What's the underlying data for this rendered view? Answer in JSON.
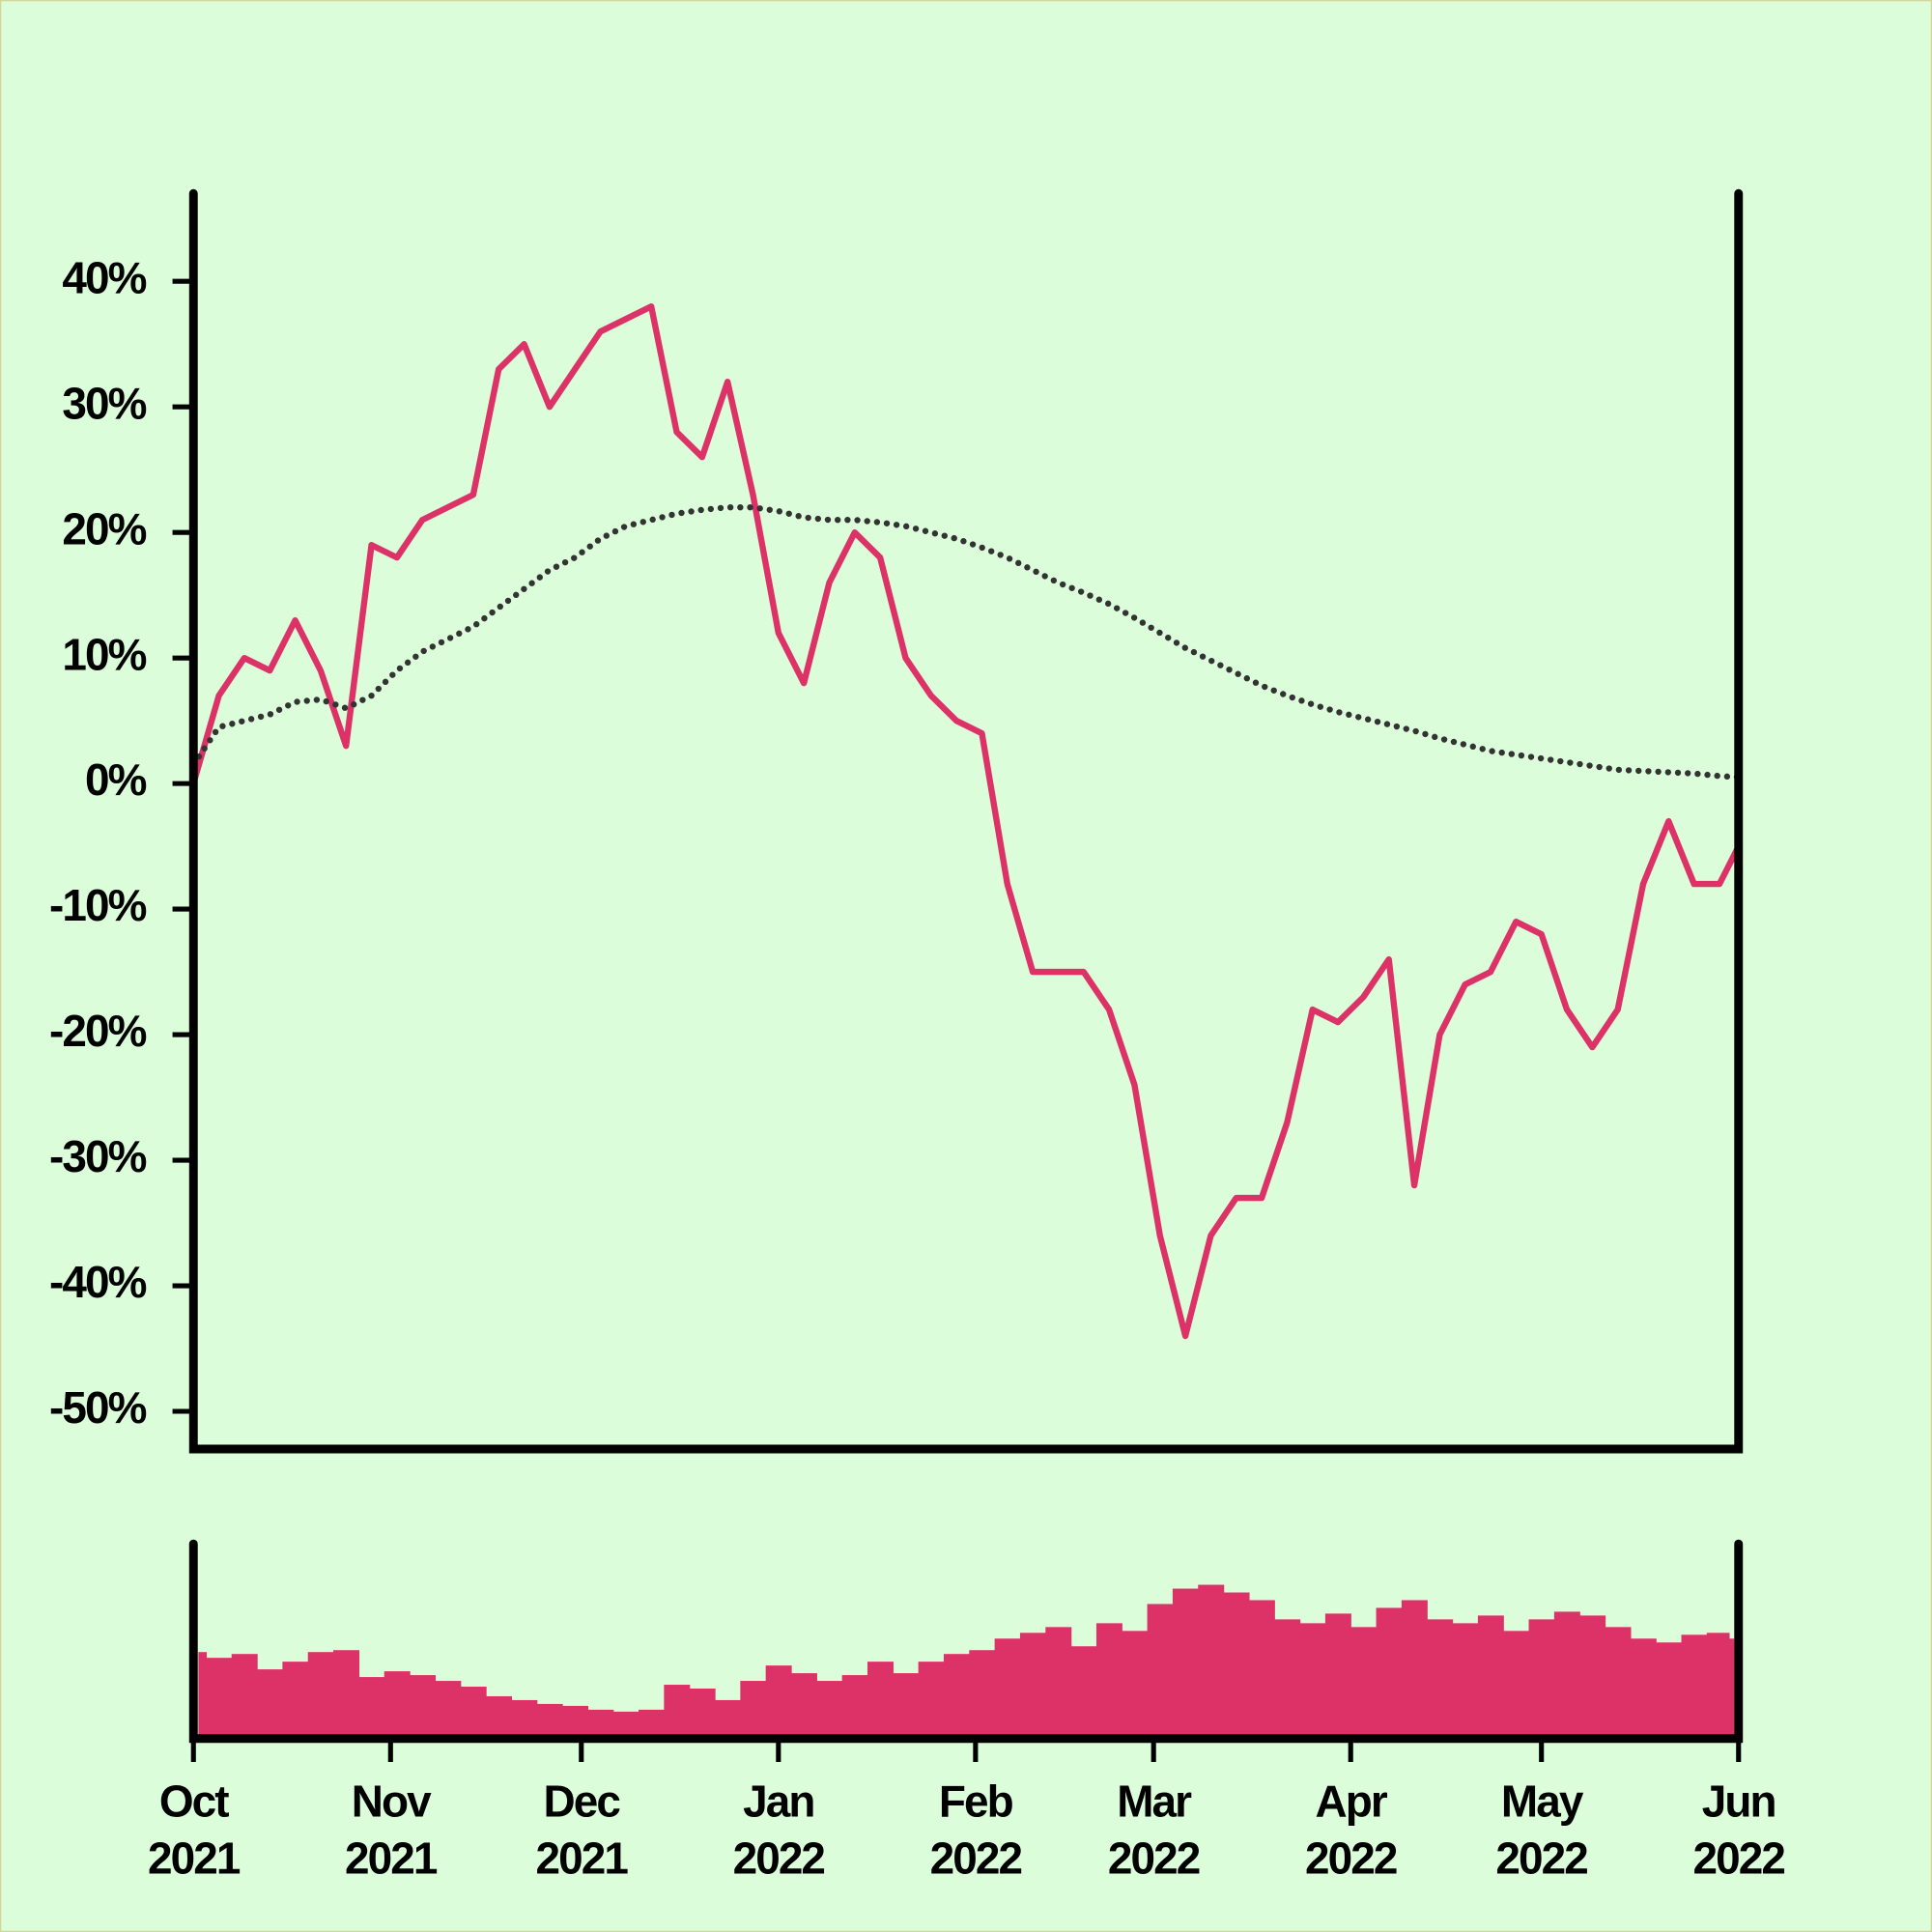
{
  "chart_data": [
    {
      "type": "line",
      "x": [
        0,
        4,
        8,
        12,
        16,
        20,
        24,
        28,
        32,
        36,
        40,
        44,
        48,
        52,
        56,
        60,
        64,
        68,
        72,
        76,
        80,
        84,
        88,
        92,
        96,
        100,
        104,
        108,
        112,
        116,
        120,
        124,
        128,
        132,
        136,
        140,
        144,
        148,
        152,
        156,
        160,
        164,
        168,
        172,
        176,
        180,
        184,
        188,
        192,
        196,
        200,
        204,
        208,
        212,
        216,
        220,
        224,
        228,
        232,
        236,
        240,
        243
      ],
      "xlim": [
        0,
        243
      ],
      "ylim": [
        -53,
        47
      ],
      "yticks": [
        {
          "value": 40,
          "label": "40%"
        },
        {
          "value": 30,
          "label": "30%"
        },
        {
          "value": 20,
          "label": "20%"
        },
        {
          "value": 10,
          "label": "10%"
        },
        {
          "value": 0,
          "label": "0%"
        },
        {
          "value": -10,
          "label": "-10%"
        },
        {
          "value": -20,
          "label": "-20%"
        },
        {
          "value": -30,
          "label": "-30%"
        },
        {
          "value": -40,
          "label": "-40%"
        },
        {
          "value": -50,
          "label": "-50%"
        }
      ],
      "series": [
        {
          "color": "#dc3268",
          "style": "solid",
          "values": [
            0,
            7,
            10,
            9,
            13,
            9,
            3,
            19,
            18,
            21,
            22,
            23,
            33,
            35,
            30,
            33,
            36,
            37,
            38,
            28,
            26,
            32,
            23,
            12,
            8,
            16,
            20,
            18,
            10,
            7,
            5,
            4,
            -8,
            -15,
            -15,
            -15,
            -18,
            -24,
            -36,
            -44,
            -36,
            -33,
            -33,
            -27,
            -18,
            -19,
            -17,
            -14,
            -32,
            -20,
            -16,
            -15,
            -11,
            -12,
            -18,
            -21,
            -18,
            -8,
            -3,
            -8,
            -8,
            -5
          ]
        },
        {
          "color": "#333333",
          "style": "dotted",
          "values": [
            1.5,
            4.5,
            5,
            5.5,
            6.5,
            6.7,
            6,
            7,
            9,
            10.5,
            11.5,
            12.5,
            14,
            15.5,
            17,
            18,
            19.5,
            20.5,
            21,
            21.5,
            21.8,
            22,
            22,
            21.7,
            21.2,
            21,
            21,
            20.8,
            20.5,
            20,
            19.5,
            18.8,
            18,
            17,
            16,
            15.2,
            14.3,
            13.2,
            12,
            10.8,
            9.8,
            8.8,
            7.8,
            7,
            6.3,
            5.7,
            5.2,
            4.7,
            4.2,
            3.6,
            3.1,
            2.6,
            2.3,
            2,
            1.7,
            1.4,
            1.1,
            1,
            0.9,
            0.8,
            0.6,
            0.5
          ]
        }
      ]
    },
    {
      "type": "bar",
      "x": [
        0,
        4,
        8,
        12,
        16,
        20,
        24,
        28,
        32,
        36,
        40,
        44,
        48,
        52,
        56,
        60,
        64,
        68,
        72,
        76,
        80,
        84,
        88,
        92,
        96,
        100,
        104,
        108,
        112,
        116,
        120,
        124,
        128,
        132,
        136,
        140,
        144,
        148,
        152,
        156,
        160,
        164,
        168,
        172,
        176,
        180,
        184,
        188,
        192,
        196,
        200,
        204,
        208,
        212,
        216,
        220,
        224,
        228,
        232,
        236,
        240,
        243
      ],
      "values": [
        45,
        42,
        44,
        36,
        40,
        45,
        46,
        32,
        35,
        33,
        30,
        27,
        22,
        20,
        18,
        17,
        15,
        14,
        15,
        28,
        26,
        20,
        30,
        38,
        34,
        30,
        33,
        40,
        34,
        40,
        44,
        46,
        52,
        55,
        58,
        48,
        60,
        56,
        70,
        78,
        80,
        76,
        72,
        62,
        60,
        65,
        58,
        68,
        72,
        62,
        60,
        64,
        56,
        62,
        66,
        64,
        58,
        52,
        50,
        54,
        55,
        52
      ],
      "color": "#dc3268",
      "xlim": [
        0,
        243
      ],
      "ylim": [
        0,
        100
      ],
      "xticks": [
        {
          "value": 0,
          "label": "Oct 2021"
        },
        {
          "value": 31,
          "label": "Nov 2021"
        },
        {
          "value": 61,
          "label": "Dec 2021"
        },
        {
          "value": 92,
          "label": "Jan 2022"
        },
        {
          "value": 123,
          "label": "Feb 2022"
        },
        {
          "value": 151,
          "label": "Mar 2022"
        },
        {
          "value": 182,
          "label": "Apr 2022"
        },
        {
          "value": 212,
          "label": "May 2022"
        },
        {
          "value": 243,
          "label": "Jun 2022"
        }
      ]
    }
  ]
}
